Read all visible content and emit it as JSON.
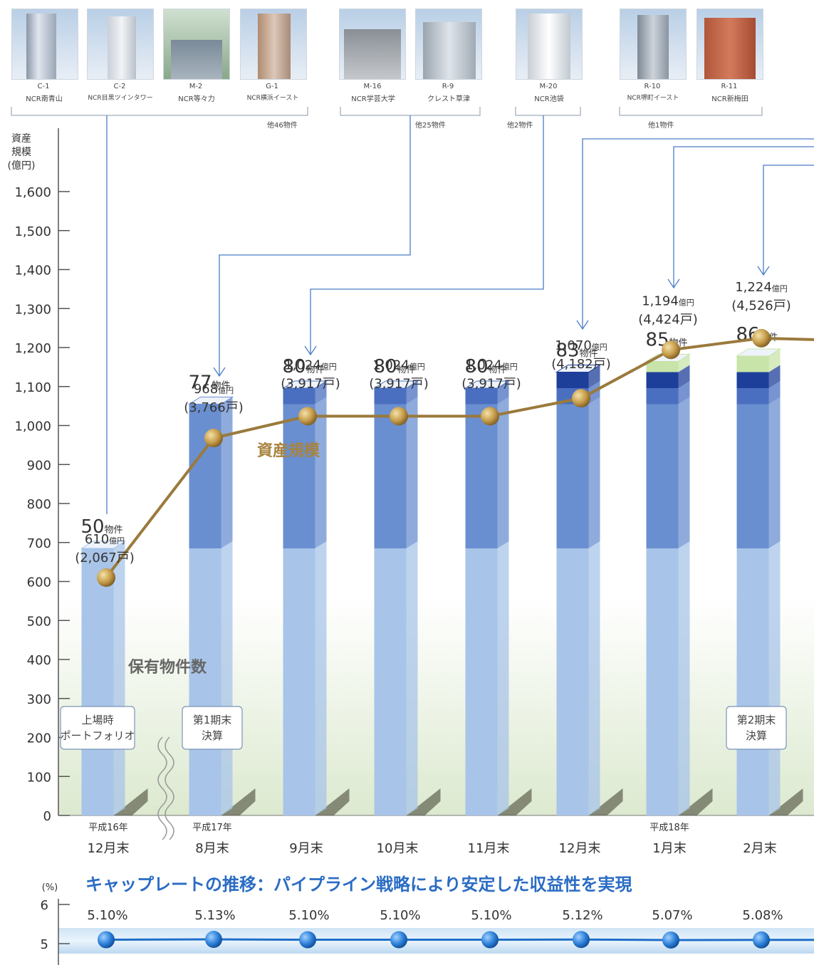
{
  "properties": [
    {
      "code": "C-1",
      "name": "NCR南青山"
    },
    {
      "code": "C-2",
      "name": "NCR目黒ツインタワー"
    },
    {
      "code": "M-2",
      "name": "NCR等々力"
    },
    {
      "code": "G-1",
      "name": "NCR横浜イースト"
    },
    {
      "code": "M-16",
      "name": "NCR学芸大学"
    },
    {
      "code": "R-9",
      "name": "クレスト草津"
    },
    {
      "code": "M-20",
      "name": "NCR池袋"
    },
    {
      "code": "R-10",
      "name": "NCR堺町イースト"
    },
    {
      "code": "R-11",
      "name": "NCR新梅田"
    }
  ],
  "property_groups": [
    {
      "others": "他46物件"
    },
    {
      "others": "他25物件"
    },
    {
      "others": "他2物件"
    },
    {
      "others": "他1物件"
    }
  ],
  "chart_data": {
    "type": "bar+line",
    "y_title": [
      "資産",
      "規模",
      "(億円)"
    ],
    "y_ticks": [
      "1,600",
      "1,500",
      "1,400",
      "1,300",
      "1,200",
      "1,100",
      "1,000",
      "900",
      "800",
      "700",
      "600",
      "500",
      "400",
      "300",
      "200",
      "100",
      "0"
    ],
    "ylim": [
      0,
      1600
    ],
    "periods": [
      {
        "era": "平成16年",
        "month": "12月末"
      },
      {
        "era": "平成17年",
        "month": "8月末"
      },
      {
        "era": "",
        "month": "9月末"
      },
      {
        "era": "",
        "month": "10月末"
      },
      {
        "era": "",
        "month": "11月末"
      },
      {
        "era": "",
        "month": "12月末"
      },
      {
        "era": "平成18年",
        "month": "1月末"
      },
      {
        "era": "",
        "month": "2月末"
      }
    ],
    "asset_series_label": "資産規模",
    "asset_values": [
      610,
      968,
      1024,
      1024,
      1024,
      1070,
      1194,
      1224
    ],
    "asset_labels": [
      "610",
      "968",
      "1,024",
      "1,024",
      "1,024",
      "1,070",
      "1,194",
      "1,224"
    ],
    "asset_unit": "億円",
    "units_labels": [
      "(2,067戸)",
      "(3,766戸)",
      "(3,917戸)",
      "(3,917戸)",
      "(3,917戸)",
      "(4,182戸)",
      "(4,424戸)",
      "(4,526戸)"
    ],
    "count_series_label": "保有物件数",
    "property_counts": [
      50,
      77,
      80,
      80,
      80,
      83,
      85,
      86
    ],
    "count_unit": "物件",
    "stack_segments": [
      [
        50,
        0,
        0,
        0
      ],
      [
        50,
        27,
        0,
        0
      ],
      [
        50,
        27,
        3,
        0
      ],
      [
        50,
        27,
        3,
        0
      ],
      [
        50,
        27,
        3,
        0
      ],
      [
        50,
        27,
        3,
        3
      ],
      [
        50,
        27,
        3,
        3
      ],
      [
        50,
        27,
        3,
        3
      ]
    ],
    "top_segment_new": [
      0,
      0,
      0,
      0,
      0,
      0,
      2,
      3
    ],
    "stack_colors": [
      "#a8c4e8",
      "#6a8fd0",
      "#4a6fc0",
      "#1d3f9a"
    ],
    "new_color": "#c8e4a8",
    "line_color": "#9a7a3c",
    "callouts": [
      {
        "text": [
          "上場時",
          "ポートフォリオ"
        ]
      },
      {
        "text": [
          "第1期末",
          "決算"
        ]
      },
      {
        "text": [
          "第2期末",
          "決算"
        ]
      }
    ],
    "cap_rate": {
      "title": "キャップレートの推移：パイプライン戦略により安定した収益性を実現",
      "unit": "(%)",
      "y_ticks": [
        "6",
        "5"
      ],
      "values": [
        5.1,
        5.13,
        5.1,
        5.1,
        5.1,
        5.12,
        5.07,
        5.08
      ],
      "labels": [
        "5.10%",
        "5.13%",
        "5.10%",
        "5.10%",
        "5.10%",
        "5.12%",
        "5.07%",
        "5.08%"
      ],
      "line_color": "#1f6fc8"
    }
  }
}
